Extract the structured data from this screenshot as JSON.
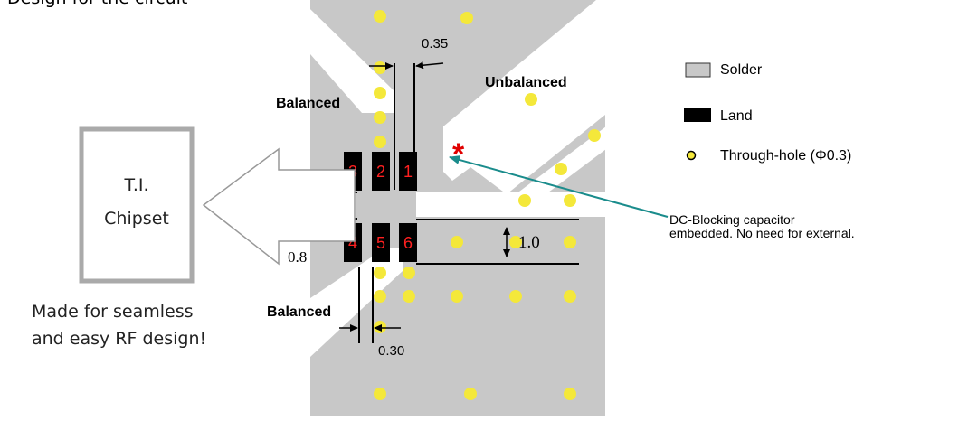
{
  "header_fragment": "Design for the circuit",
  "chipset": {
    "line1": "T.I.",
    "line2": "Chipset"
  },
  "tagline": {
    "line1": "Made for seamless",
    "line2": "and easy RF design!"
  },
  "labels": {
    "balanced_top": "Balanced",
    "balanced_bottom": "Balanced",
    "unbalanced": "Unbalanced"
  },
  "dimensions": {
    "top_width": "0.35",
    "left_gap": "0.8",
    "bottom_width": "0.30",
    "right_gap": "1.0"
  },
  "pads": [
    "3",
    "2",
    "1",
    "4",
    "5",
    "6"
  ],
  "asterisk": "*",
  "legend": {
    "solder": "Solder",
    "land": "Land",
    "through_hole": "Through-hole (Φ0.3)"
  },
  "note": {
    "line1": "DC-Blocking capacitor",
    "line2_underlined": "embedded",
    "line2_rest": ". No need for external."
  },
  "colors": {
    "board": "#c8c8c8",
    "pad": "#000000",
    "pad_number": "#ff2020",
    "via_fill": "#f4e83a",
    "arrow_teal": "#1a8c8c",
    "chip_border": "#aaaaaa",
    "asterisk": "#e00000"
  }
}
